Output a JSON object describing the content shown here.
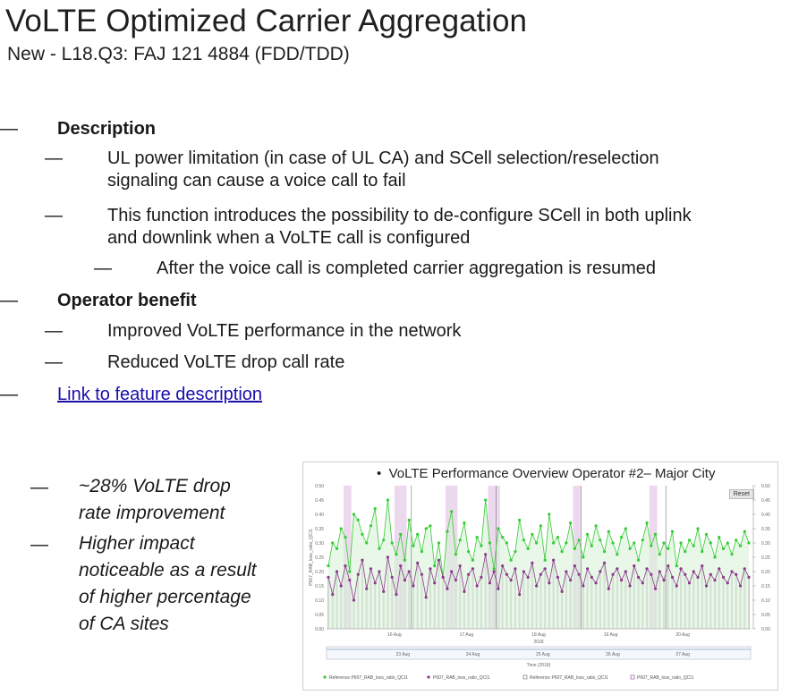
{
  "slide": {
    "title": "VoLTE Optimized Carrier Aggregation",
    "subtitle": "New - L18.Q3: FAJ 121 4884 (FDD/TDD)"
  },
  "bullets": {
    "dash": "—",
    "description_heading": "Description",
    "desc_1a": "UL power limitation (in case of UL CA) and SCell selection/reselection",
    "desc_1b": "signaling can cause a voice call to fail",
    "desc_2a": "This function introduces the possibility to de-configure SCell in both uplink",
    "desc_2b": "and downlink when a VoLTE call is configured",
    "desc_3": "After the voice call is completed carrier aggregation is resumed",
    "benefit_heading": "Operator benefit",
    "benefit_1": "Improved VoLTE performance in the network",
    "benefit_2": "Reduced VoLTE drop call rate",
    "link": "Link to feature description"
  },
  "side_notes": {
    "note1a": "~28% VoLTE drop",
    "note1b": "rate improvement",
    "note2a": "Higher impact",
    "note2b": "noticeable as a result",
    "note2c": "of higher percentage",
    "note2d": "of CA sites"
  },
  "chart_data": {
    "type": "line",
    "title": "VoLTE Performance Overview Operator #2– Major City",
    "reset_label": "Reset",
    "ylabel_left": "P607_RAB_loss_ratio_QCI1",
    "ylim": [
      0,
      0.5
    ],
    "yticks": [
      "0.00",
      "0.05",
      "0.10",
      "0.15",
      "0.20",
      "0.25",
      "0.30",
      "0.35",
      "0.40",
      "0.45",
      "0.50"
    ],
    "x_ticks_top": [
      "16 Aug",
      "17 Aug",
      "18 Aug",
      "19 Aug",
      "20 Aug"
    ],
    "x_year": "2018",
    "x_ticks_nav": [
      "23 Aug",
      "24 Aug",
      "25 Aug",
      "26 Aug",
      "27 Aug"
    ],
    "xlabel": "Time (2018)",
    "colors": {
      "reference": "#33cc33",
      "current": "#8b3a8b",
      "ref_fill": "#d8f2d8",
      "cur_fill": "#e8cfe8",
      "bar": "#c8c8c8"
    },
    "series": [
      {
        "name": "Reference P607_RAB_loss_ratio_QCI1",
        "values": [
          0.22,
          0.3,
          0.28,
          0.35,
          0.32,
          0.2,
          0.4,
          0.38,
          0.33,
          0.3,
          0.36,
          0.42,
          0.28,
          0.31,
          0.45,
          0.3,
          0.26,
          0.33,
          0.24,
          0.38,
          0.29,
          0.33,
          0.27,
          0.35,
          0.36,
          0.22,
          0.3,
          0.18,
          0.34,
          0.41,
          0.26,
          0.31,
          0.37,
          0.27,
          0.24,
          0.32,
          0.29,
          0.45,
          0.3,
          0.21,
          0.35,
          0.32,
          0.3,
          0.24,
          0.27,
          0.38,
          0.31,
          0.28,
          0.33,
          0.3,
          0.36,
          0.24,
          0.4,
          0.3,
          0.32,
          0.27,
          0.3,
          0.37,
          0.28,
          0.31,
          0.25,
          0.33,
          0.29,
          0.36,
          0.31,
          0.27,
          0.34,
          0.3,
          0.26,
          0.32,
          0.35,
          0.28,
          0.3,
          0.24,
          0.31,
          0.37,
          0.29,
          0.33,
          0.26,
          0.3,
          0.28,
          0.34,
          0.22,
          0.3,
          0.27,
          0.31,
          0.29,
          0.35,
          0.27,
          0.33,
          0.3,
          0.25,
          0.32,
          0.28,
          0.3,
          0.26,
          0.31,
          0.29,
          0.34,
          0.3
        ]
      },
      {
        "name": "P607_RAB_loss_ratio_QCI1",
        "values": [
          0.18,
          0.12,
          0.2,
          0.15,
          0.22,
          0.17,
          0.1,
          0.19,
          0.24,
          0.14,
          0.21,
          0.16,
          0.2,
          0.13,
          0.25,
          0.18,
          0.12,
          0.22,
          0.17,
          0.2,
          0.15,
          0.23,
          0.19,
          0.11,
          0.21,
          0.16,
          0.24,
          0.18,
          0.14,
          0.2,
          0.17,
          0.22,
          0.13,
          0.19,
          0.21,
          0.15,
          0.18,
          0.26,
          0.16,
          0.2,
          0.14,
          0.22,
          0.19,
          0.17,
          0.21,
          0.12,
          0.2,
          0.18,
          0.23,
          0.15,
          0.19,
          0.21,
          0.16,
          0.24,
          0.18,
          0.13,
          0.2,
          0.17,
          0.22,
          0.19,
          0.15,
          0.21,
          0.18,
          0.16,
          0.2,
          0.23,
          0.14,
          0.19,
          0.21,
          0.17,
          0.2,
          0.15,
          0.22,
          0.18,
          0.16,
          0.21,
          0.19,
          0.14,
          0.2,
          0.17,
          0.22,
          0.18,
          0.15,
          0.21,
          0.19,
          0.16,
          0.2,
          0.18,
          0.22,
          0.15,
          0.19,
          0.17,
          0.21,
          0.18,
          0.16,
          0.2,
          0.19,
          0.15,
          0.21,
          0.18
        ]
      }
    ],
    "legend": [
      "Reference P607_RAB_loss_ratio_QCI1",
      "P607_RAB_loss_ratio_QCI1",
      "Reference P607_RAB_loss_ratio_QCI1",
      "P607_RAB_loss_ratio_QCI1"
    ]
  }
}
